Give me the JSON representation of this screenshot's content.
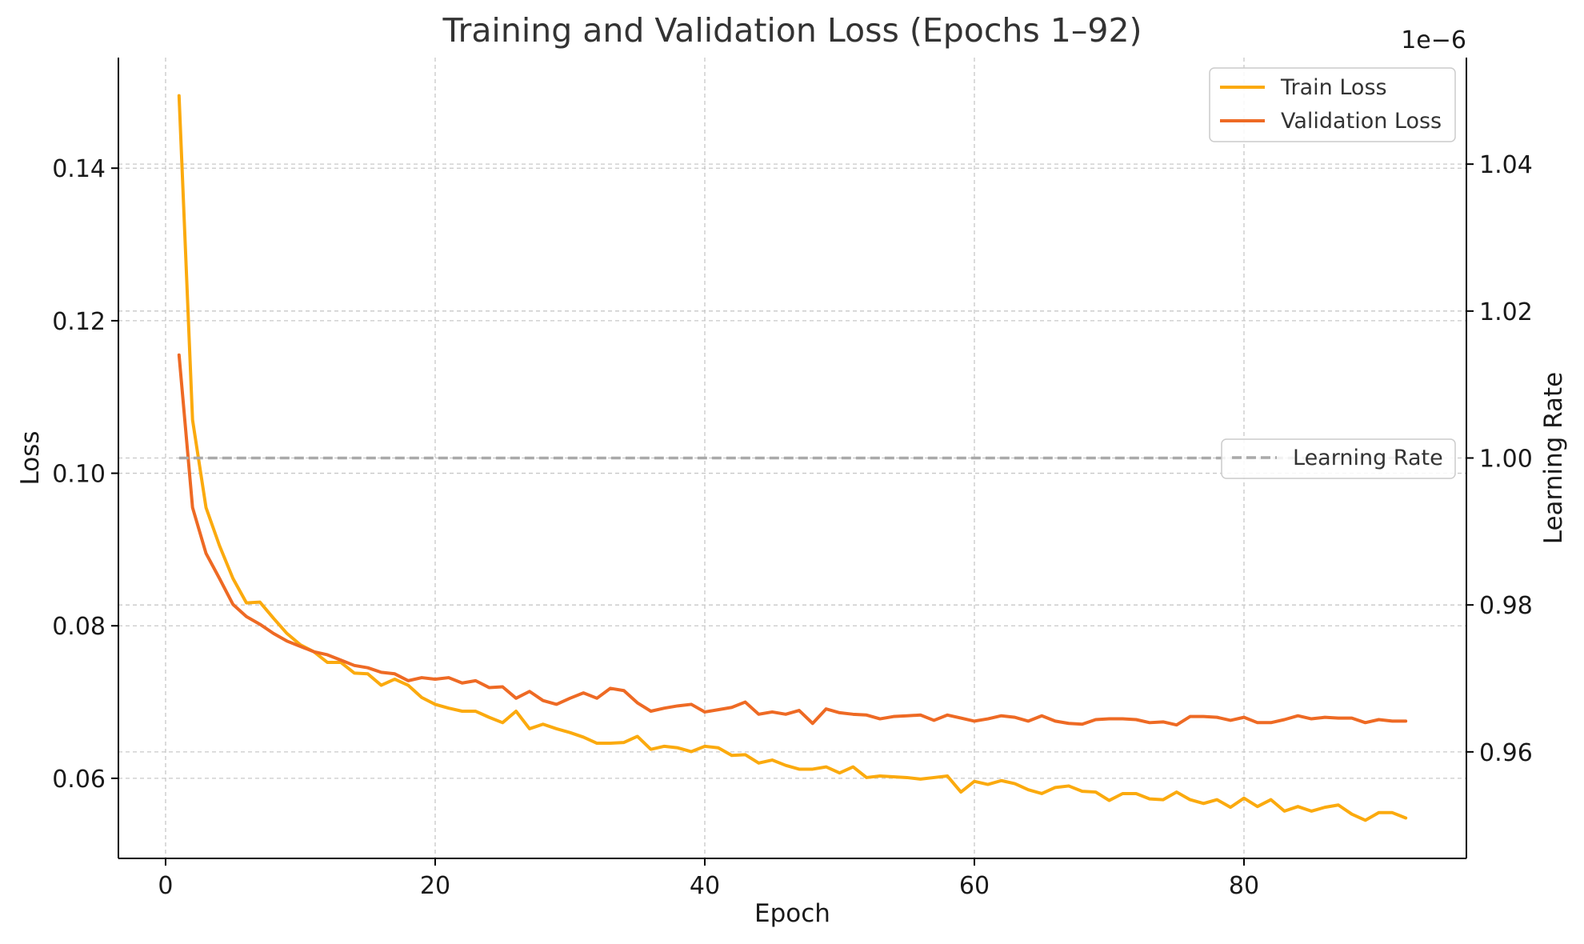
{
  "chart_data": {
    "type": "line",
    "title": "Training and Validation Loss (Epochs 1–92)",
    "xlabel": "Epoch",
    "ylabel": "Loss",
    "y2label": "Learning Rate",
    "y2_offset_text": "1e−6",
    "xlim": [
      -3.5,
      96.5
    ],
    "ylim": [
      0.0495,
      0.1545
    ],
    "y2lim": [
      0.9455,
      1.0545
    ],
    "x_ticks": [
      0,
      20,
      40,
      60,
      80
    ],
    "y_ticks": [
      0.06,
      0.08,
      0.1,
      0.12,
      0.14
    ],
    "y_tick_labels": [
      "0.06",
      "0.08",
      "0.10",
      "0.12",
      "0.14"
    ],
    "y2_ticks": [
      0.96,
      0.98,
      1.0,
      1.02,
      1.04
    ],
    "y2_tick_labels": [
      "0.96",
      "0.98",
      "1.00",
      "1.02",
      "1.04"
    ],
    "grid": true,
    "legend_loss_placement": "top-right",
    "legend_lr_placement": "center-right",
    "epochs_start": 1,
    "series": [
      {
        "name": "Train Loss",
        "axis": "left",
        "color": "#FBAA0E",
        "values": [
          0.1495,
          0.107,
          0.0955,
          0.0905,
          0.0862,
          0.083,
          0.0831,
          0.081,
          0.079,
          0.0775,
          0.0766,
          0.0752,
          0.0752,
          0.0738,
          0.0737,
          0.0722,
          0.073,
          0.0722,
          0.0706,
          0.0697,
          0.0692,
          0.0688,
          0.0688,
          0.068,
          0.0673,
          0.0688,
          0.0665,
          0.0671,
          0.0665,
          0.066,
          0.0654,
          0.0646,
          0.0646,
          0.0647,
          0.0655,
          0.0638,
          0.0642,
          0.064,
          0.0635,
          0.0642,
          0.064,
          0.063,
          0.0631,
          0.062,
          0.0624,
          0.0617,
          0.0612,
          0.0612,
          0.0615,
          0.0607,
          0.0615,
          0.0601,
          0.0603,
          0.0602,
          0.0601,
          0.0599,
          0.0601,
          0.0603,
          0.0582,
          0.0596,
          0.0592,
          0.0597,
          0.0593,
          0.0585,
          0.058,
          0.0588,
          0.059,
          0.0583,
          0.0582,
          0.0571,
          0.058,
          0.058,
          0.0573,
          0.0572,
          0.0582,
          0.0572,
          0.0567,
          0.0572,
          0.0562,
          0.0574,
          0.0563,
          0.0572,
          0.0557,
          0.0563,
          0.0557,
          0.0562,
          0.0565,
          0.0553,
          0.0545,
          0.0555,
          0.0555,
          0.0548
        ]
      },
      {
        "name": "Validation Loss",
        "axis": "left",
        "color": "#EE6A24",
        "values": [
          0.1155,
          0.0955,
          0.0895,
          0.0862,
          0.0828,
          0.0812,
          0.0802,
          0.079,
          0.078,
          0.0773,
          0.0766,
          0.0762,
          0.0755,
          0.0748,
          0.0745,
          0.0739,
          0.0737,
          0.0728,
          0.0732,
          0.073,
          0.0732,
          0.0725,
          0.0728,
          0.0719,
          0.072,
          0.0705,
          0.0714,
          0.0702,
          0.0697,
          0.0705,
          0.0712,
          0.0705,
          0.0718,
          0.0715,
          0.0699,
          0.0688,
          0.0692,
          0.0695,
          0.0697,
          0.0687,
          0.069,
          0.0693,
          0.07,
          0.0684,
          0.0687,
          0.0684,
          0.0689,
          0.0672,
          0.0691,
          0.0686,
          0.0684,
          0.0683,
          0.0678,
          0.0681,
          0.0682,
          0.0683,
          0.0676,
          0.0683,
          0.0679,
          0.0675,
          0.0678,
          0.0682,
          0.068,
          0.0675,
          0.0682,
          0.0675,
          0.0672,
          0.0671,
          0.0677,
          0.0678,
          0.0678,
          0.0677,
          0.0673,
          0.0674,
          0.067,
          0.0681,
          0.0681,
          0.068,
          0.0676,
          0.068,
          0.0673,
          0.0673,
          0.0677,
          0.0682,
          0.0678,
          0.068,
          0.0679,
          0.0679,
          0.0673,
          0.0677,
          0.0675,
          0.0675
        ]
      },
      {
        "name": "Learning Rate",
        "axis": "right",
        "color": "#AAAAAA",
        "dashed": true,
        "constant": 1.0
      }
    ]
  }
}
